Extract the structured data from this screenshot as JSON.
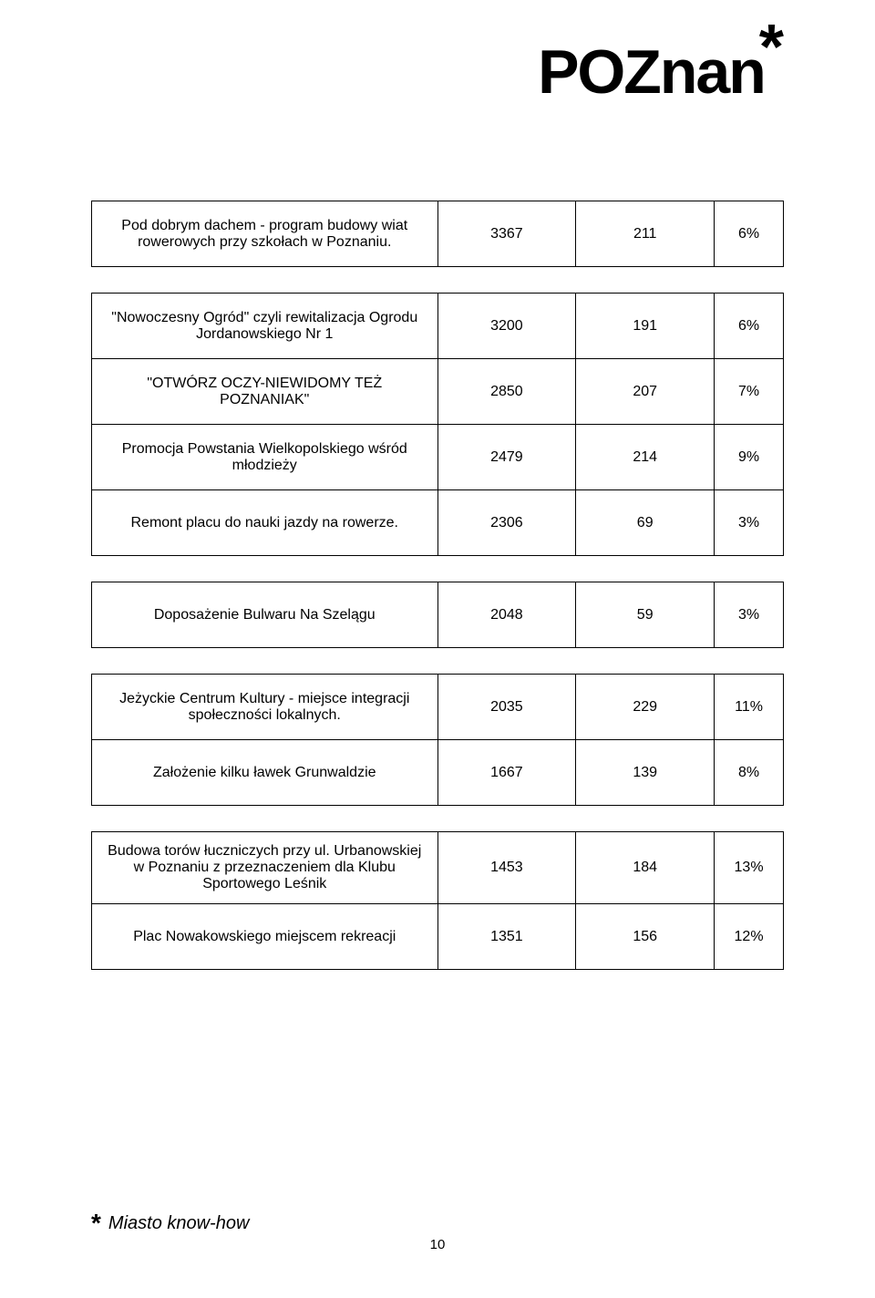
{
  "logo_text": "POZnan",
  "footer_logo": "Miasto know-how",
  "page_number": "10",
  "groups": [
    {
      "rows": [
        {
          "label": "Pod dobrym dachem - program budowy wiat rowerowych przy szkołach w Poznaniu.",
          "v1": "3367",
          "v2": "211",
          "pct": "6%"
        }
      ]
    },
    {
      "rows": [
        {
          "label": "\"Nowoczesny Ogród\" czyli rewitalizacja Ogrodu Jordanowskiego Nr 1",
          "v1": "3200",
          "v2": "191",
          "pct": "6%"
        },
        {
          "label": "\"OTWÓRZ OCZY-NIEWIDOMY TEŻ POZNANIAK\"",
          "v1": "2850",
          "v2": "207",
          "pct": "7%"
        },
        {
          "label": "Promocja Powstania Wielkopolskiego wśród młodzieży",
          "v1": "2479",
          "v2": "214",
          "pct": "9%"
        },
        {
          "label": "Remont placu do nauki jazdy na rowerze.",
          "v1": "2306",
          "v2": "69",
          "pct": "3%"
        }
      ]
    },
    {
      "rows": [
        {
          "label": "Doposażenie Bulwaru Na Szelągu",
          "v1": "2048",
          "v2": "59",
          "pct": "3%"
        }
      ]
    },
    {
      "rows": [
        {
          "label": "Jeżyckie Centrum Kultury - miejsce integracji społeczności lokalnych.",
          "v1": "2035",
          "v2": "229",
          "pct": "11%"
        },
        {
          "label": "Założenie kilku ławek Grunwaldzie",
          "v1": "1667",
          "v2": "139",
          "pct": "8%"
        }
      ]
    },
    {
      "rows": [
        {
          "label": "Budowa torów łuczniczych przy ul. Urbanowskiej w Poznaniu z przeznaczeniem dla Klubu Sportowego Leśnik",
          "v1": "1453",
          "v2": "184",
          "pct": "13%"
        },
        {
          "label": "Plac Nowakowskiego miejscem rekreacji",
          "v1": "1351",
          "v2": "156",
          "pct": "12%"
        }
      ]
    }
  ]
}
